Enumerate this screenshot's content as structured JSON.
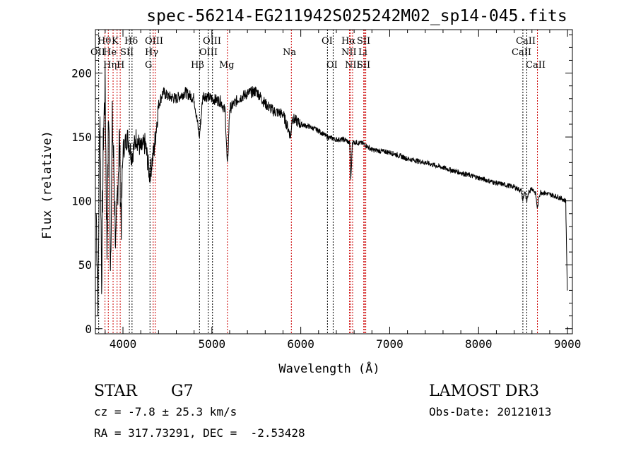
{
  "chart_data": {
    "type": "line",
    "title": "spec-56214-EG211942S025242M02_sp14-045.fits",
    "xlabel": "Wavelength (Å)",
    "ylabel": "Flux (relative)",
    "xlim": [
      3690,
      9055
    ],
    "ylim": [
      -4,
      234
    ],
    "xticks": [
      4000,
      5000,
      6000,
      7000,
      8000,
      9000
    ],
    "yticks": [
      0,
      50,
      100,
      150,
      200
    ],
    "grid": false,
    "series": [
      {
        "name": "spectrum",
        "x": [
          3700,
          3720,
          3740,
          3760,
          3780,
          3800,
          3820,
          3840,
          3860,
          3880,
          3900,
          3920,
          3940,
          3960,
          3980,
          4000,
          4050,
          4100,
          4150,
          4200,
          4250,
          4300,
          4350,
          4400,
          4450,
          4500,
          4600,
          4700,
          4800,
          4860,
          4900,
          5000,
          5100,
          5150,
          5175,
          5200,
          5300,
          5400,
          5500,
          5600,
          5700,
          5800,
          5890,
          5900,
          6000,
          6100,
          6200,
          6300,
          6400,
          6500,
          6550,
          6563,
          6580,
          6600,
          6700,
          6800,
          6900,
          7000,
          7200,
          7400,
          7600,
          7800,
          8000,
          8200,
          8400,
          8480,
          8498,
          8520,
          8542,
          8560,
          8600,
          8640,
          8662,
          8680,
          8700,
          8800,
          8900,
          8980,
          9000
        ],
        "y": [
          90,
          20,
          180,
          40,
          150,
          190,
          60,
          175,
          50,
          160,
          120,
          60,
          110,
          150,
          80,
          140,
          150,
          135,
          150,
          140,
          145,
          120,
          140,
          175,
          185,
          182,
          180,
          185,
          180,
          150,
          183,
          180,
          178,
          170,
          125,
          172,
          180,
          184,
          186,
          176,
          170,
          168,
          150,
          165,
          160,
          158,
          155,
          150,
          148,
          148,
          145,
          115,
          146,
          146,
          145,
          140,
          139,
          138,
          133,
          130,
          126,
          122,
          118,
          114,
          111,
          108,
          100,
          108,
          98,
          107,
          110,
          106,
          94,
          104,
          107,
          105,
          103,
          100,
          20
        ]
      }
    ],
    "line_markers": [
      {
        "name": "OII",
        "wavelength": 3727,
        "color": "#000000"
      },
      {
        "name": "Hθ",
        "wavelength": 3798,
        "color": "#cc0000"
      },
      {
        "name": "Hη",
        "wavelength": 3835,
        "color": "#cc0000"
      },
      {
        "name": "He",
        "wavelength": 3889,
        "color": "#cc0000"
      },
      {
        "name": "K",
        "wavelength": 3934,
        "color": "#cc0000"
      },
      {
        "name": "H",
        "wavelength": 3969,
        "color": "#cc0000"
      },
      {
        "name": "SII",
        "wavelength": 4072,
        "color": "#000000"
      },
      {
        "name": "Hδ",
        "wavelength": 4102,
        "color": "#000000"
      },
      {
        "name": "G",
        "wavelength": 4304,
        "color": "#000000"
      },
      {
        "name": "Hγ",
        "wavelength": 4340,
        "color": "#cc0000"
      },
      {
        "name": "OIII",
        "wavelength": 4363,
        "color": "#cc0000"
      },
      {
        "name": "Hβ",
        "wavelength": 4861,
        "color": "#000000"
      },
      {
        "name": "OIII",
        "wavelength": 4959,
        "color": "#000000"
      },
      {
        "name": "OIII",
        "wavelength": 5007,
        "color": "#000000"
      },
      {
        "name": "Mg",
        "wavelength": 5175,
        "color": "#cc0000"
      },
      {
        "name": "Na",
        "wavelength": 5894,
        "color": "#cc0000"
      },
      {
        "name": "OI",
        "wavelength": 6300,
        "color": "#000000"
      },
      {
        "name": "OI",
        "wavelength": 6364,
        "color": "#000000"
      },
      {
        "name": "NII",
        "wavelength": 6548,
        "color": "#cc0000"
      },
      {
        "name": "Hα",
        "wavelength": 6563,
        "color": "#cc0000"
      },
      {
        "name": "NII",
        "wavelength": 6583,
        "color": "#cc0000"
      },
      {
        "name": "Li",
        "wavelength": 6708,
        "color": "#cc0000"
      },
      {
        "name": "SII",
        "wavelength": 6717,
        "color": "#cc0000"
      },
      {
        "name": "SII",
        "wavelength": 6731,
        "color": "#cc0000"
      },
      {
        "name": "CaII",
        "wavelength": 8498,
        "color": "#000000"
      },
      {
        "name": "CaII",
        "wavelength": 8542,
        "color": "#000000"
      },
      {
        "name": "CaII",
        "wavelength": 8662,
        "color": "#cc0000"
      }
    ]
  },
  "info": {
    "class": "STAR",
    "subclass": "G7",
    "survey": "LAMOST DR3",
    "redshift": "cz = -7.8 ± 25.3 km/s",
    "obs_date": "Obs-Date: 20121013",
    "coords": "RA = 317.73291, DEC =  -2.53428"
  }
}
